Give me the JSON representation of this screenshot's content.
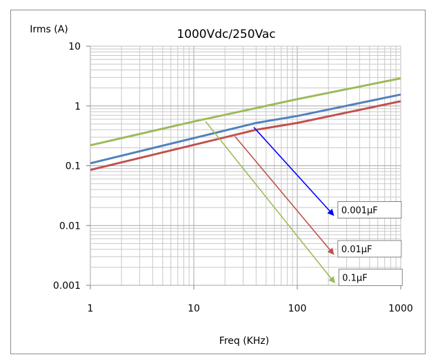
{
  "chart_data": {
    "type": "line",
    "title": "1000Vdc/250Vac",
    "xlabel": "Freq (KHz)",
    "ylabel": "Irms (A)",
    "xscale": "log",
    "yscale": "log",
    "xlim": [
      1,
      1000
    ],
    "ylim": [
      0.001,
      10
    ],
    "grid": true,
    "x_ticks": [
      "1",
      "10",
      "100",
      "1000"
    ],
    "y_ticks": [
      "10",
      "1",
      "0.1",
      "0.01",
      "0.001"
    ],
    "colors": {
      "green": "#9bbb59",
      "blue": "#4f81bd",
      "red": "#c0504d",
      "arrow_blue": "#0000ff"
    },
    "series": [
      {
        "color": "#9bbb59",
        "x": [
          1,
          10,
          100,
          1000
        ],
        "y": [
          0.22,
          0.55,
          1.3,
          2.9
        ]
      },
      {
        "color": "#4f81bd",
        "x": [
          1,
          40,
          100,
          1000
        ],
        "y": [
          0.11,
          0.52,
          0.68,
          1.55
        ]
      },
      {
        "color": "#c0504d",
        "x": [
          1,
          40,
          100,
          1000
        ],
        "y": [
          0.085,
          0.4,
          0.52,
          1.2
        ]
      }
    ],
    "annotations": [
      {
        "text": "0.001μF",
        "color": "#0000ff",
        "from": [
          38,
          0.44
        ],
        "to": [
          225,
          0.0148
        ]
      },
      {
        "text": "0.01μF",
        "color": "#c0504d",
        "from": [
          25,
          0.31
        ],
        "to": [
          225,
          0.0033
        ]
      },
      {
        "text": "0.1μF",
        "color": "#9bbb59",
        "from": [
          13,
          0.55
        ],
        "to": [
          230,
          0.0011
        ]
      }
    ]
  }
}
